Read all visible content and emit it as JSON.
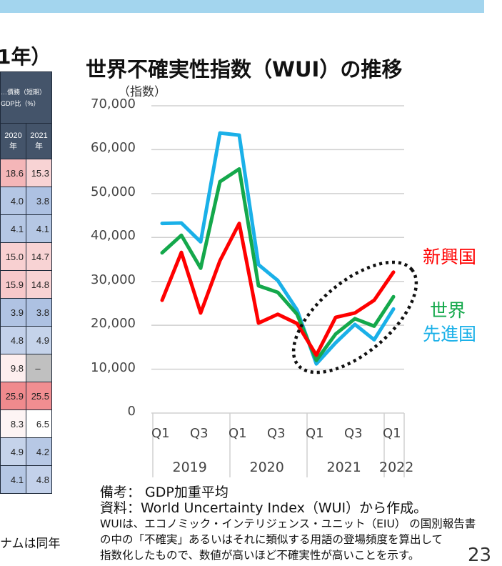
{
  "left_table": {
    "title": "1年）",
    "header": "…債務（短期）\n…GDP比（%）",
    "header_lines": [
      "…債務（短期）",
      "GDP比（%）"
    ],
    "columns": [
      "2020年",
      "2021年"
    ],
    "rows": [
      {
        "v": [
          "18.6",
          "15.3"
        ],
        "c": [
          "#f4b6b8",
          "#f8d3d4"
        ]
      },
      {
        "v": [
          "4.0",
          "3.8"
        ],
        "c": [
          "#b4c6e4",
          "#adc1e2"
        ]
      },
      {
        "v": [
          "4.1",
          "4.1"
        ],
        "c": [
          "#b5c7e4",
          "#b5c7e4"
        ]
      },
      {
        "v": [
          "15.0",
          "14.7"
        ],
        "c": [
          "#f8d0d1",
          "#f8d3d4"
        ]
      },
      {
        "v": [
          "15.9",
          "14.8"
        ],
        "c": [
          "#f7c8ca",
          "#f8d2d3"
        ]
      },
      {
        "v": [
          "3.9",
          "3.8"
        ],
        "c": [
          "#b0c3e3",
          "#adc1e2"
        ]
      },
      {
        "v": [
          "4.8",
          "4.9"
        ],
        "c": [
          "#c3d1ea",
          "#c5d3ea"
        ]
      },
      {
        "v": [
          "9.8",
          "–"
        ],
        "c": [
          "#fdeeee",
          "#c0c0c0"
        ]
      },
      {
        "v": [
          "25.9",
          "25.5"
        ],
        "c": [
          "#f08a8d",
          "#f18e91"
        ]
      },
      {
        "v": [
          "8.3",
          "6.5"
        ],
        "c": [
          "#fdf4f4",
          "#ffffff"
        ]
      },
      {
        "v": [
          "4.9",
          "4.2"
        ],
        "c": [
          "#c5d3ea",
          "#b7c8e5"
        ]
      },
      {
        "v": [
          "4.1",
          "4.8"
        ],
        "c": [
          "#b5c7e4",
          "#c3d1ea"
        ]
      }
    ],
    "note": "ナムは同年"
  },
  "chart_data": {
    "type": "line",
    "title": "世界不確実性指数（WUI）の推移",
    "ylabel": "（指数）",
    "xlabel": "",
    "ylim": [
      0,
      70000
    ],
    "yticks": [
      0,
      10000,
      20000,
      30000,
      40000,
      50000,
      60000,
      70000
    ],
    "ytick_labels": [
      "0",
      "10,000",
      "20,000",
      "30,000",
      "40,000",
      "50,000",
      "60,000",
      "70,000"
    ],
    "x": [
      "2019Q1",
      "2019Q2",
      "2019Q3",
      "2019Q4",
      "2020Q1",
      "2020Q2",
      "2020Q3",
      "2020Q4",
      "2021Q1",
      "2021Q2",
      "2021Q3",
      "2021Q4",
      "2022Q1"
    ],
    "xtick_labels": [
      {
        "i": 0,
        "t": "Q1"
      },
      {
        "i": 2,
        "t": "Q3"
      },
      {
        "i": 4,
        "t": "Q1"
      },
      {
        "i": 6,
        "t": "Q3"
      },
      {
        "i": 8,
        "t": "Q1"
      },
      {
        "i": 10,
        "t": "Q3"
      },
      {
        "i": 12,
        "t": "Q1"
      }
    ],
    "year_labels": [
      {
        "from": 0,
        "to": 3,
        "t": "2019"
      },
      {
        "from": 4,
        "to": 7,
        "t": "2020"
      },
      {
        "from": 8,
        "to": 11,
        "t": "2021"
      },
      {
        "from": 12,
        "to": 12,
        "t": "2022"
      }
    ],
    "grid": true,
    "series": [
      {
        "name": "先進国",
        "color": "#1ab0e8",
        "values": [
          43200,
          43300,
          39000,
          63800,
          63300,
          33800,
          30200,
          23500,
          11200,
          16000,
          20200,
          16700,
          23700
        ]
      },
      {
        "name": "世界",
        "color": "#14a84b",
        "values": [
          36500,
          40500,
          33000,
          52700,
          55600,
          29000,
          27500,
          22500,
          12000,
          18000,
          21500,
          19800,
          26500
        ]
      },
      {
        "name": "新興国",
        "color": "#ff0000",
        "values": [
          25700,
          36600,
          22800,
          34700,
          43200,
          20500,
          22500,
          20400,
          13200,
          21800,
          22800,
          25700,
          32100
        ]
      }
    ],
    "annotation": "dotted ellipse highlighting 2021–2022"
  },
  "notes": [
    "備考： GDP加重平均",
    "資料：World Uncertainty Index（WUI）から作成。",
    "WUIは、エコノミック・インテリジェンス・ユニット（EIU） の国別報告書",
    "の中の「不確実」あるいはそれに類似する用語の登場頻度を算出して",
    "指数化したもので、数値が高いほど不確実性が高いことを示す。"
  ],
  "page_number": "23"
}
